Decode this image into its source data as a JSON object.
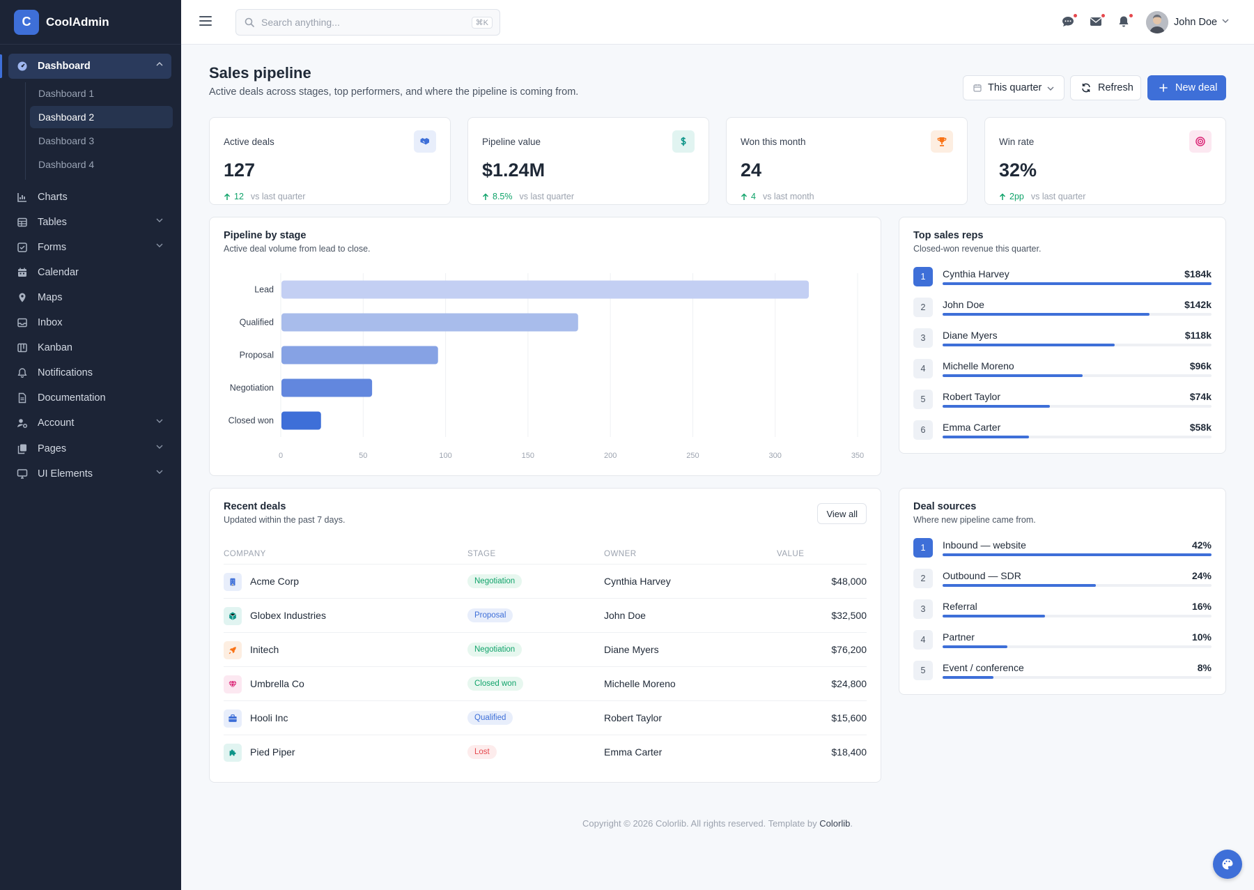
{
  "brand": {
    "logo_letter": "C",
    "name": "CoolAdmin"
  },
  "sidebar": {
    "items": [
      {
        "label": "Dashboard",
        "icon": "gauge-icon"
      },
      {
        "label": "Charts",
        "icon": "chart-icon"
      },
      {
        "label": "Tables",
        "icon": "table-icon"
      },
      {
        "label": "Forms",
        "icon": "checkbox-icon"
      },
      {
        "label": "Calendar",
        "icon": "calendar-icon"
      },
      {
        "label": "Maps",
        "icon": "map-pin-icon"
      },
      {
        "label": "Inbox",
        "icon": "inbox-icon"
      },
      {
        "label": "Kanban",
        "icon": "kanban-icon"
      },
      {
        "label": "Notifications",
        "icon": "bell-icon"
      },
      {
        "label": "Documentation",
        "icon": "document-icon"
      },
      {
        "label": "Account",
        "icon": "user-gear-icon"
      },
      {
        "label": "Pages",
        "icon": "copy-icon"
      },
      {
        "label": "UI Elements",
        "icon": "monitor-icon"
      }
    ],
    "dashboard_sub": [
      "Dashboard 1",
      "Dashboard 2",
      "Dashboard 3",
      "Dashboard 4"
    ],
    "active_sub": "Dashboard 2"
  },
  "topbar": {
    "search_placeholder": "Search anything...",
    "search_shortcut": "⌘K",
    "user_name": "John Doe"
  },
  "page": {
    "title": "Sales pipeline",
    "subtitle": "Active deals across stages, top performers, and where the pipeline is coming from.",
    "period_select": "This quarter",
    "refresh_label": "Refresh",
    "new_deal_label": "New deal"
  },
  "stats": [
    {
      "label": "Active deals",
      "value": "127",
      "delta": "12",
      "note": "vs last quarter",
      "icon": "handshake-icon",
      "color": "#3e6fd8",
      "bg": "#e8eefb"
    },
    {
      "label": "Pipeline value",
      "value": "$1.24M",
      "delta": "8.5%",
      "note": "vs last quarter",
      "icon": "dollar-icon",
      "color": "#0d9488",
      "bg": "#e1f4f1"
    },
    {
      "label": "Won this month",
      "value": "24",
      "delta": "4",
      "note": "vs last month",
      "icon": "trophy-icon",
      "color": "#f97316",
      "bg": "#fdeee1"
    },
    {
      "label": "Win rate",
      "value": "32%",
      "delta": "2pp",
      "note": "vs last quarter",
      "icon": "target-icon",
      "color": "#db2777",
      "bg": "#fce8f1"
    }
  ],
  "pipeline": {
    "title": "Pipeline by stage",
    "subtitle": "Active deal volume from lead to close."
  },
  "chart_data": {
    "type": "bar",
    "orientation": "horizontal",
    "categories": [
      "Lead",
      "Qualified",
      "Proposal",
      "Negotiation",
      "Closed won"
    ],
    "values": [
      320,
      180,
      95,
      55,
      24
    ],
    "xlim": [
      0,
      350
    ],
    "xticks": [
      0,
      50,
      100,
      150,
      200,
      250,
      300,
      350
    ],
    "grid": true,
    "colors": [
      "#c3cff3",
      "#a8bceb",
      "#86a2e4",
      "#6287de",
      "#3e6fd8"
    ]
  },
  "top_reps": {
    "title": "Top sales reps",
    "subtitle": "Closed-won revenue this quarter.",
    "rows": [
      {
        "rank": "1",
        "name": "Cynthia Harvey",
        "value": "$184k",
        "pct": 100
      },
      {
        "rank": "2",
        "name": "John Doe",
        "value": "$142k",
        "pct": 77
      },
      {
        "rank": "3",
        "name": "Diane Myers",
        "value": "$118k",
        "pct": 64
      },
      {
        "rank": "4",
        "name": "Michelle Moreno",
        "value": "$96k",
        "pct": 52
      },
      {
        "rank": "5",
        "name": "Robert Taylor",
        "value": "$74k",
        "pct": 40
      },
      {
        "rank": "6",
        "name": "Emma Carter",
        "value": "$58k",
        "pct": 32
      }
    ]
  },
  "recent_deals": {
    "title": "Recent deals",
    "subtitle": "Updated within the past 7 days.",
    "view_all": "View all",
    "headers": [
      "Company",
      "Stage",
      "Owner",
      "Value"
    ],
    "rows": [
      {
        "company": "Acme Corp",
        "stage": "Negotiation",
        "owner": "Cynthia Harvey",
        "value": "$48,000",
        "icon": "building-icon",
        "icon_color": "#3e6fd8",
        "icon_bg": "#e8eefb",
        "stage_color": "#10a36a",
        "stage_bg": "#e7f7ef"
      },
      {
        "company": "Globex Industries",
        "stage": "Proposal",
        "owner": "John Doe",
        "value": "$32,500",
        "icon": "hexagon-icon",
        "icon_color": "#0d9488",
        "icon_bg": "#e1f4f1",
        "stage_color": "#3e6fd8",
        "stage_bg": "#e8eefb"
      },
      {
        "company": "Initech",
        "stage": "Negotiation",
        "owner": "Diane Myers",
        "value": "$76,200",
        "icon": "rocket-icon",
        "icon_color": "#f97316",
        "icon_bg": "#fdeee1",
        "stage_color": "#10a36a",
        "stage_bg": "#e7f7ef"
      },
      {
        "company": "Umbrella Co",
        "stage": "Closed won",
        "owner": "Michelle Moreno",
        "value": "$24,800",
        "icon": "gem-icon",
        "icon_color": "#db2777",
        "icon_bg": "#fce8f1",
        "stage_color": "#10a36a",
        "stage_bg": "#e7f7ef"
      },
      {
        "company": "Hooli Inc",
        "stage": "Qualified",
        "owner": "Robert Taylor",
        "value": "$15,600",
        "icon": "briefcase-icon",
        "icon_color": "#3e6fd8",
        "icon_bg": "#e8eefb",
        "stage_color": "#3e6fd8",
        "stage_bg": "#e8eefb"
      },
      {
        "company": "Pied Piper",
        "stage": "Lost",
        "owner": "Emma Carter",
        "value": "$18,400",
        "icon": "puzzle-icon",
        "icon_color": "#0d9488",
        "icon_bg": "#e1f4f1",
        "stage_color": "#e5484d",
        "stage_bg": "#fdecec"
      }
    ]
  },
  "deal_sources": {
    "title": "Deal sources",
    "subtitle": "Where new pipeline came from.",
    "rows": [
      {
        "rank": "1",
        "name": "Inbound — website",
        "value": "42%",
        "pct": 100
      },
      {
        "rank": "2",
        "name": "Outbound — SDR",
        "value": "24%",
        "pct": 57
      },
      {
        "rank": "3",
        "name": "Referral",
        "value": "16%",
        "pct": 38
      },
      {
        "rank": "4",
        "name": "Partner",
        "value": "10%",
        "pct": 24
      },
      {
        "rank": "5",
        "name": "Event / conference",
        "value": "8%",
        "pct": 19
      }
    ]
  },
  "footer": {
    "text": "Copyright © 2026 Colorlib. All rights reserved. Template by",
    "link": "Colorlib",
    "end": "."
  }
}
